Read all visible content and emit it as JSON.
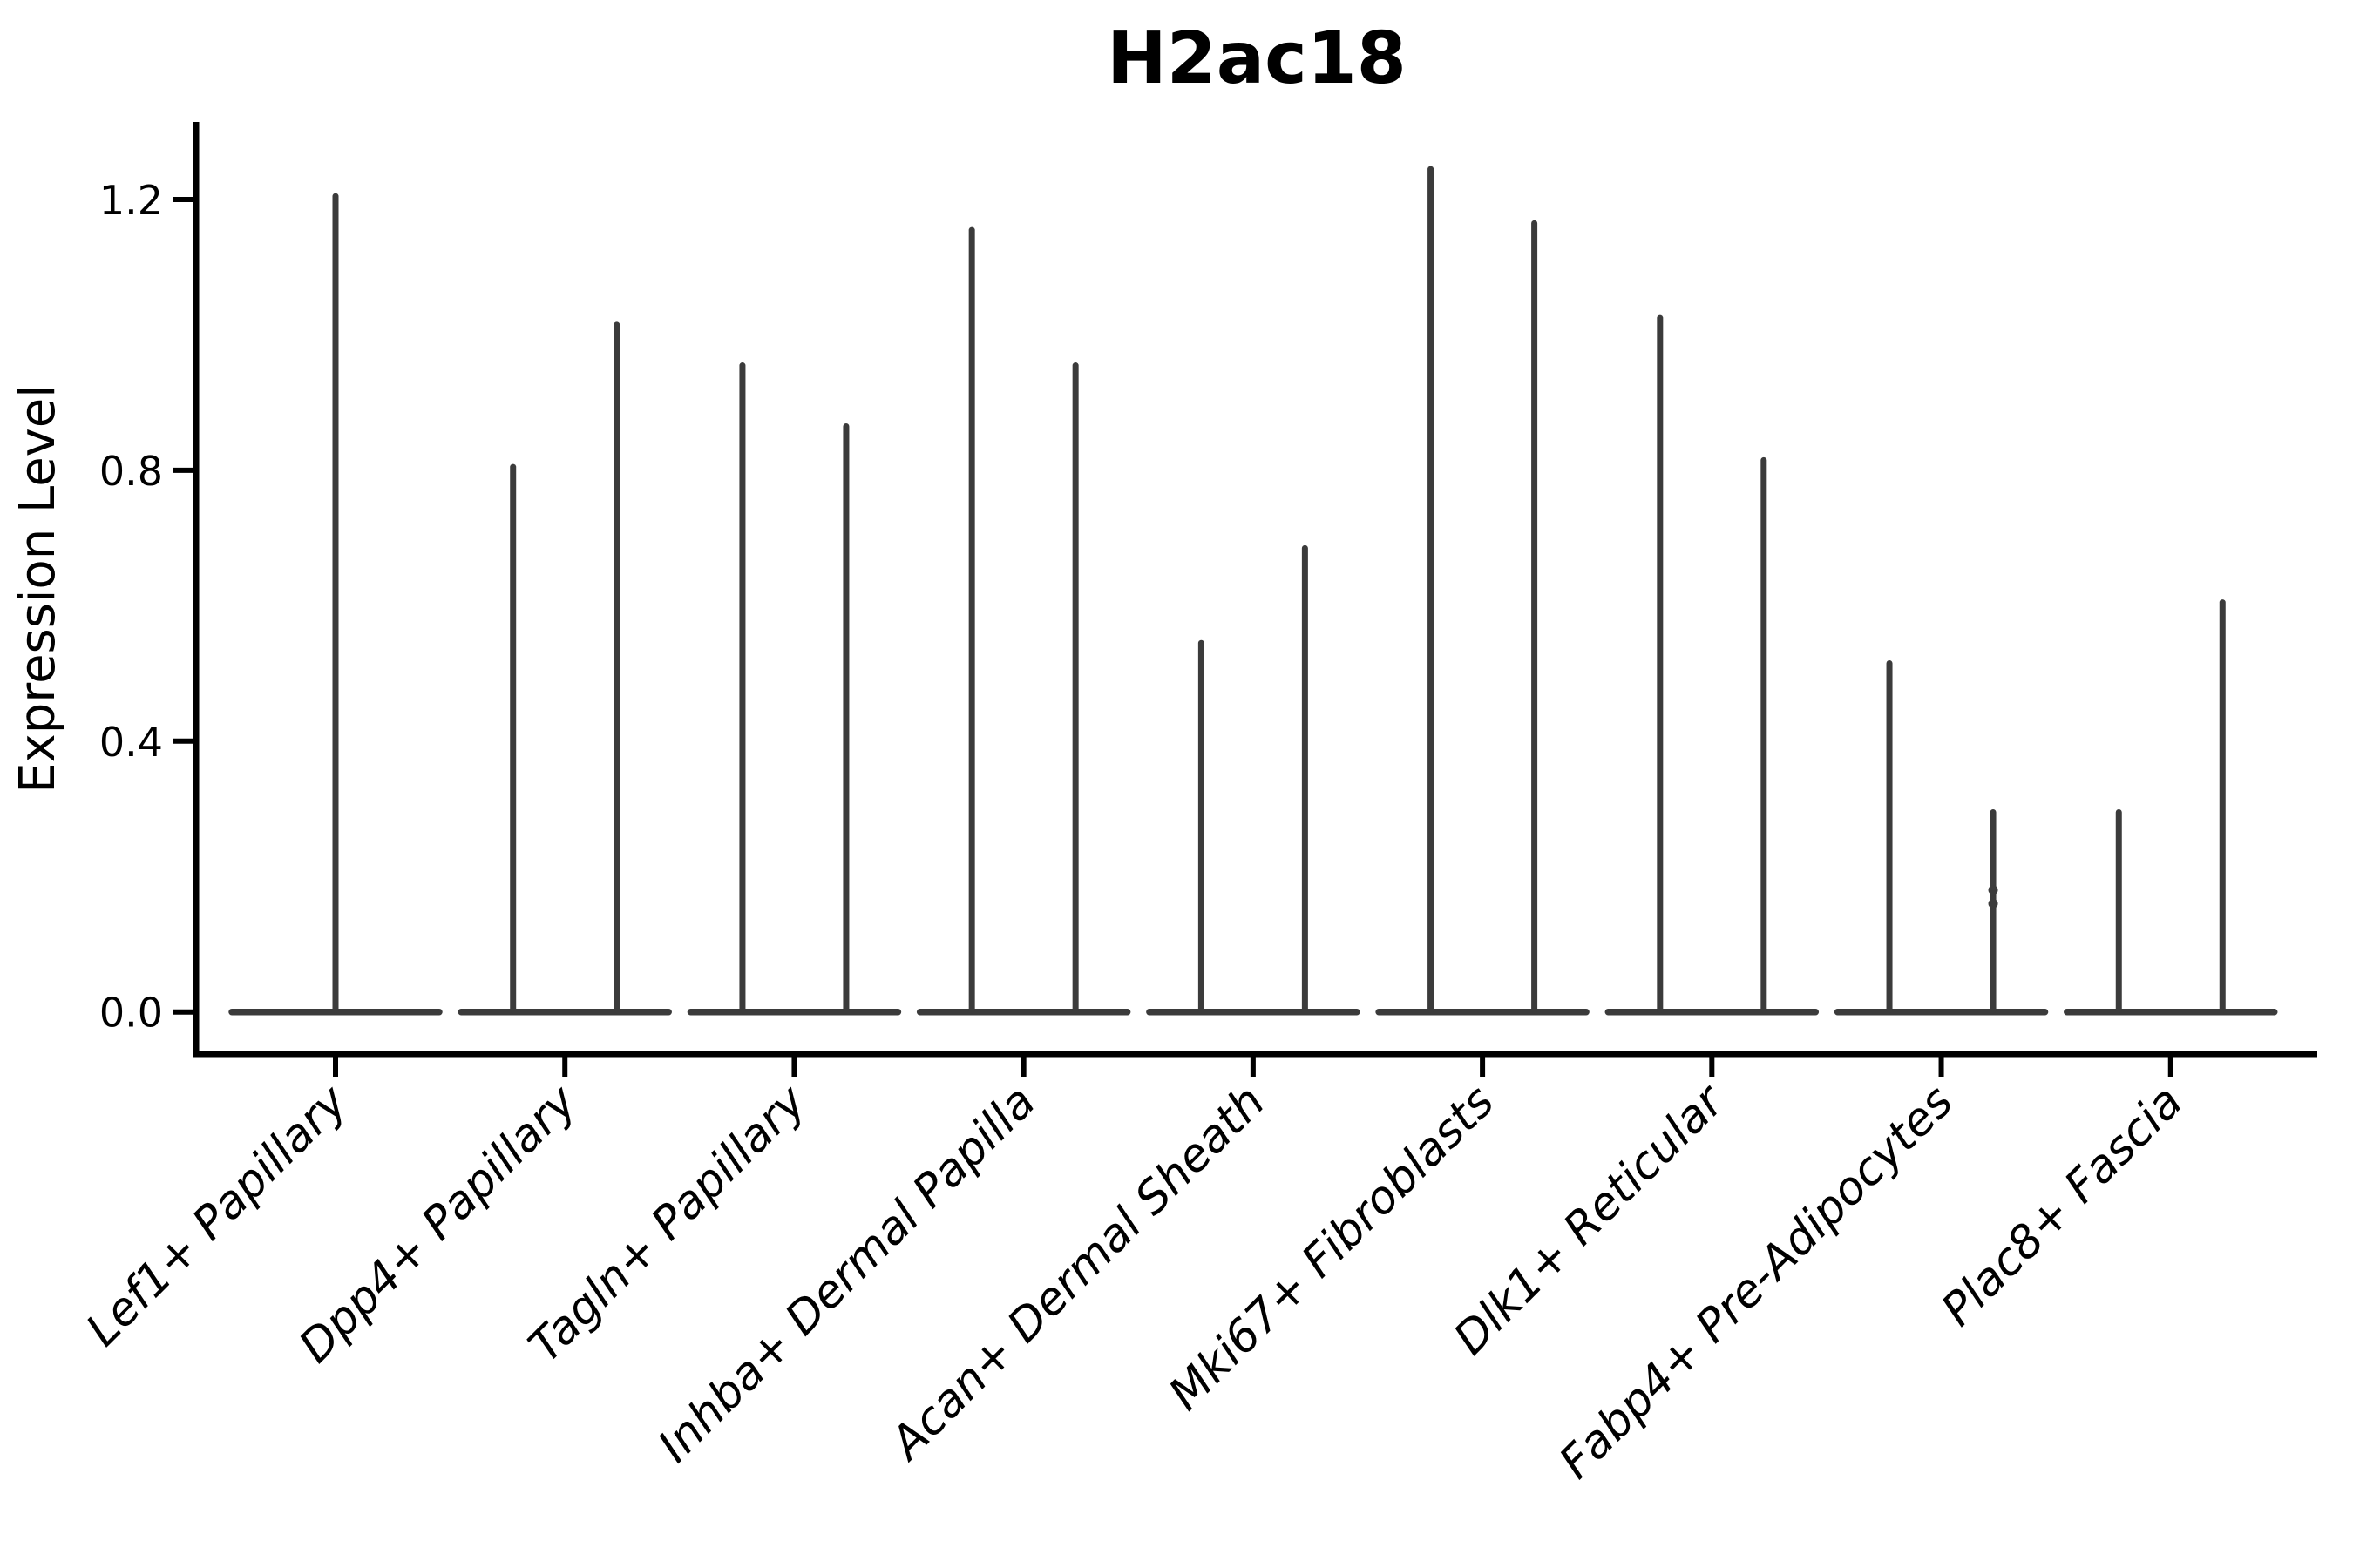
{
  "chart_data": {
    "type": "violin",
    "title": "H2ac18",
    "xlabel": "",
    "ylabel": "Expression Level",
    "ylim": [
      -0.06,
      1.31
    ],
    "yticks": [
      0.0,
      0.4,
      0.8,
      1.2
    ],
    "ytick_labels": [
      "0.0",
      "0.4",
      "0.8",
      "1.2"
    ],
    "grid": false,
    "legend": null,
    "categories": [
      "Lef1+ Papillary",
      "Dpp4+ Papillary",
      "Tagln+ Papillary",
      "Inhba+ Dermal Papilla",
      "Acan+ Dermal Sheath",
      "Mki67+ Fibroblasts",
      "Dlk1+ Reticular",
      "Fabp4+ Pre-Adipocytes",
      "Plac8+ Fascia"
    ],
    "violins": [
      {
        "category": "Lef1+ Papillary",
        "density_mode": 0.0,
        "peaks": [
          1.21
        ]
      },
      {
        "category": "Dpp4+ Papillary",
        "density_mode": 0.0,
        "peaks": [
          0.81,
          1.02
        ]
      },
      {
        "category": "Tagln+ Papillary",
        "density_mode": 0.0,
        "peaks": [
          0.96,
          0.87
        ]
      },
      {
        "category": "Inhba+ Dermal Papilla",
        "density_mode": 0.0,
        "peaks": [
          1.16,
          0.96
        ]
      },
      {
        "category": "Acan+ Dermal Sheath",
        "density_mode": 0.0,
        "peaks": [
          0.55,
          0.69
        ]
      },
      {
        "category": "Mki67+ Fibroblasts",
        "density_mode": 0.0,
        "peaks": [
          1.25,
          1.17
        ]
      },
      {
        "category": "Dlk1+ Reticular",
        "density_mode": 0.0,
        "peaks": [
          1.03,
          0.82
        ]
      },
      {
        "category": "Fabp4+ Pre-Adipocytes",
        "density_mode": 0.0,
        "peaks": [
          0.52,
          0.3
        ],
        "knots": [
          {
            "spike": 1,
            "value": 0.18
          },
          {
            "spike": 1,
            "value": 0.16
          }
        ]
      },
      {
        "category": "Plac8+ Fascia",
        "density_mode": 0.0,
        "peaks": [
          0.3,
          0.61
        ]
      }
    ],
    "colors": {
      "violin": "#3b3b3b",
      "axis": "#000000",
      "background": "#ffffff"
    }
  }
}
